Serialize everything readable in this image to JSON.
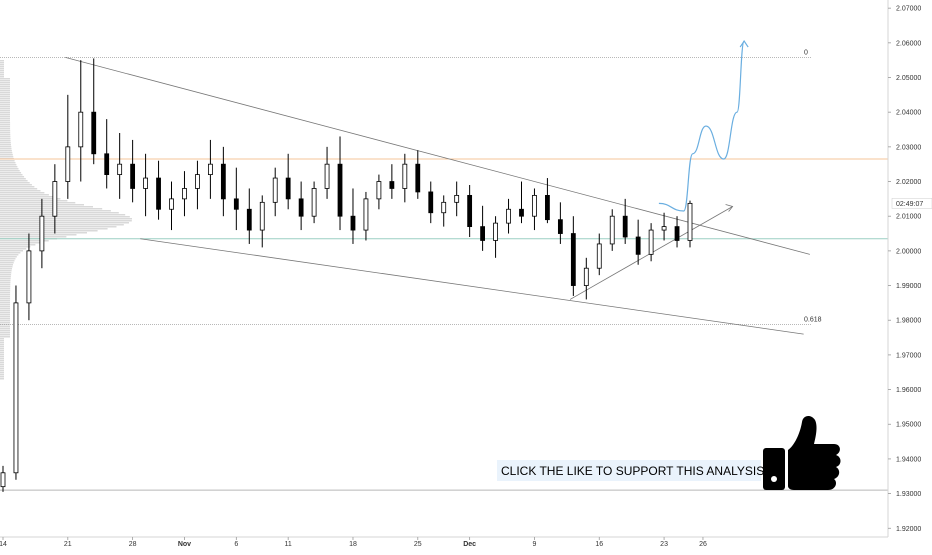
{
  "chart_data": {
    "type": "candlestick",
    "x_ticks": [
      {
        "label": "14",
        "bold": false,
        "bar": 0
      },
      {
        "label": "21",
        "bold": false,
        "bar": 5
      },
      {
        "label": "28",
        "bold": false,
        "bar": 10
      },
      {
        "label": "Nov",
        "bold": true,
        "bar": 14
      },
      {
        "label": "6",
        "bold": false,
        "bar": 18
      },
      {
        "label": "11",
        "bold": false,
        "bar": 22
      },
      {
        "label": "18",
        "bold": false,
        "bar": 27
      },
      {
        "label": "25",
        "bold": false,
        "bar": 32
      },
      {
        "label": "Dec",
        "bold": true,
        "bar": 36
      },
      {
        "label": "9",
        "bold": false,
        "bar": 41
      },
      {
        "label": "16",
        "bold": false,
        "bar": 46
      },
      {
        "label": "23",
        "bold": false,
        "bar": 51
      },
      {
        "label": "26",
        "bold": false,
        "bar": 54
      }
    ],
    "y_ticks": [
      "2.07000",
      "2.06000",
      "2.05000",
      "2.04000",
      "2.03000",
      "2.02000",
      "2.01000",
      "2.00000",
      "1.99000",
      "1.98000",
      "1.97000",
      "1.96000",
      "1.95000",
      "1.94000",
      "1.93000",
      "1.92000"
    ],
    "y_tick_values": [
      2.07,
      2.06,
      2.05,
      2.04,
      2.03,
      2.02,
      2.01,
      2.0,
      1.99,
      1.98,
      1.97,
      1.96,
      1.95,
      1.94,
      1.93,
      1.92
    ],
    "ylim": [
      1.9195,
      2.0712
    ],
    "current_price_label": "02:49:07",
    "current_price": 2.0137,
    "fib_levels": [
      {
        "label": "0",
        "price": 2.0558
      },
      {
        "label": "0.618",
        "price": 1.9788
      }
    ],
    "horizontal_levels": [
      {
        "name": "swing-low",
        "price": 1.931,
        "color": "#b8b8b8"
      },
      {
        "name": "orange-resistance",
        "price": 2.0265,
        "color": "#f6c59a"
      },
      {
        "name": "green-support",
        "price": 2.0035,
        "color": "#9ccfc3"
      }
    ],
    "candles": [
      [
        1.932,
        1.938,
        1.9305,
        1.936
      ],
      [
        1.936,
        1.99,
        1.934,
        1.985
      ],
      [
        1.985,
        2.005,
        1.98,
        2.0
      ],
      [
        2.0,
        2.015,
        1.995,
        2.01
      ],
      [
        2.01,
        2.025,
        2.005,
        2.02
      ],
      [
        2.02,
        2.045,
        2.015,
        2.03
      ],
      [
        2.03,
        2.055,
        2.02,
        2.04
      ],
      [
        2.04,
        2.0555,
        2.025,
        2.028
      ],
      [
        2.028,
        2.038,
        2.018,
        2.022
      ],
      [
        2.022,
        2.034,
        2.015,
        2.025
      ],
      [
        2.025,
        2.032,
        2.014,
        2.018
      ],
      [
        2.018,
        2.028,
        2.01,
        2.021
      ],
      [
        2.021,
        2.026,
        2.009,
        2.012
      ],
      [
        2.012,
        2.02,
        2.006,
        2.015
      ],
      [
        2.015,
        2.023,
        2.01,
        2.018
      ],
      [
        2.018,
        2.026,
        2.012,
        2.022
      ],
      [
        2.022,
        2.032,
        2.015,
        2.025
      ],
      [
        2.025,
        2.03,
        2.01,
        2.015
      ],
      [
        2.015,
        2.024,
        2.006,
        2.012
      ],
      [
        2.012,
        2.018,
        2.002,
        2.006
      ],
      [
        2.006,
        2.016,
        2.001,
        2.014
      ],
      [
        2.014,
        2.024,
        2.01,
        2.021
      ],
      [
        2.021,
        2.028,
        2.012,
        2.015
      ],
      [
        2.015,
        2.02,
        2.006,
        2.01
      ],
      [
        2.01,
        2.02,
        2.008,
        2.018
      ],
      [
        2.018,
        2.03,
        2.015,
        2.025
      ],
      [
        2.025,
        2.033,
        2.006,
        2.01
      ],
      [
        2.01,
        2.018,
        2.002,
        2.006
      ],
      [
        2.006,
        2.017,
        2.003,
        2.015
      ],
      [
        2.015,
        2.022,
        2.012,
        2.02
      ],
      [
        2.02,
        2.025,
        2.015,
        2.018
      ],
      [
        2.018,
        2.028,
        2.014,
        2.025
      ],
      [
        2.025,
        2.029,
        2.015,
        2.017
      ],
      [
        2.017,
        2.02,
        2.008,
        2.011
      ],
      [
        2.011,
        2.016,
        2.007,
        2.014
      ],
      [
        2.014,
        2.02,
        2.01,
        2.016
      ],
      [
        2.016,
        2.019,
        2.004,
        2.007
      ],
      [
        2.007,
        2.013,
        2.0,
        2.003
      ],
      [
        2.003,
        2.01,
        1.998,
        2.008
      ],
      [
        2.008,
        2.015,
        2.005,
        2.012
      ],
      [
        2.012,
        2.02,
        2.008,
        2.01
      ],
      [
        2.01,
        2.018,
        2.006,
        2.016
      ],
      [
        2.016,
        2.021,
        2.008,
        2.009
      ],
      [
        2.009,
        2.014,
        2.002,
        2.005
      ],
      [
        2.005,
        2.01,
        1.987,
        1.99
      ],
      [
        1.99,
        1.998,
        1.986,
        1.995
      ],
      [
        1.995,
        2.005,
        1.993,
        2.002
      ],
      [
        2.002,
        2.012,
        2.0,
        2.01
      ],
      [
        2.01,
        2.015,
        2.002,
        2.004
      ],
      [
        2.004,
        2.009,
        1.996,
        1.999
      ],
      [
        1.999,
        2.008,
        1.997,
        2.006
      ],
      [
        2.006,
        2.011,
        2.003,
        2.007
      ],
      [
        2.007,
        2.01,
        2.001,
        2.003
      ],
      [
        2.003,
        2.0145,
        2.001,
        2.0137
      ]
    ],
    "candle_x_range": [
      3,
      690
    ],
    "trendlines": [
      {
        "name": "upper-channel-line",
        "points": [
          [
            0.0735,
            2.0558
          ],
          [
            0.912,
            1.999
          ]
        ]
      },
      {
        "name": "lower-channel-line",
        "points": [
          [
            0.158,
            2.0035
          ],
          [
            0.905,
            1.976
          ]
        ]
      },
      {
        "name": "rising-support-line",
        "points": [
          [
            0.642,
            1.986
          ],
          [
            0.825,
            2.0128
          ]
        ]
      }
    ],
    "projection_path": {
      "name": "projected-move-arrow",
      "points": [
        [
          0.742,
          2.0137
        ],
        [
          0.77,
          2.0115
        ],
        [
          0.78,
          2.028
        ],
        [
          0.795,
          2.036
        ],
        [
          0.815,
          2.0265
        ],
        [
          0.83,
          2.04
        ],
        [
          0.838,
          2.0605
        ]
      ],
      "color": "#6aaee0"
    },
    "volume_profile_color": "#cccccc",
    "candle_up_color": "#000000",
    "candle_down_color": "#000000"
  },
  "annotation": {
    "cta_text": "CLICK THE LIKE TO SUPPORT THIS ANALYSIS"
  }
}
